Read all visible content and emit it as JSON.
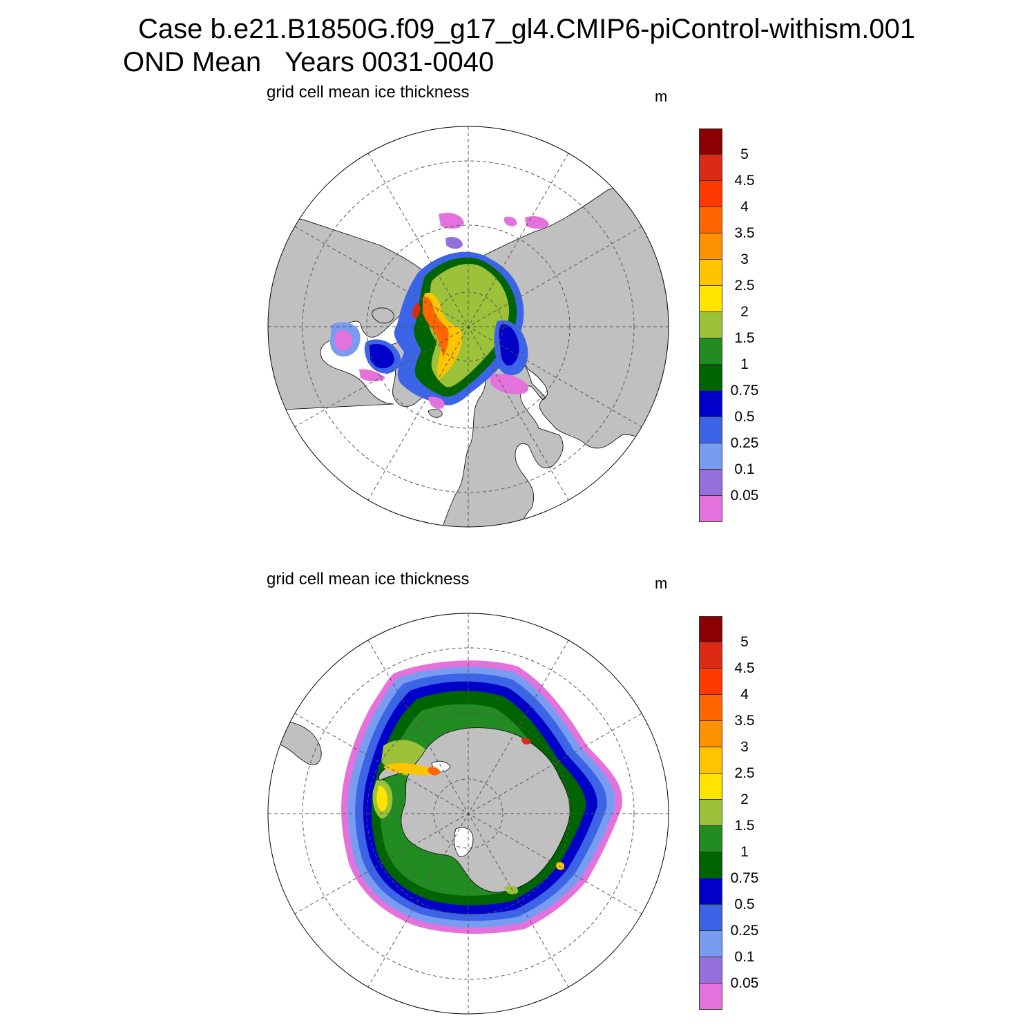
{
  "title_line1": "Case b.e21.B1850G.f09_g17_gl4.CMIP6-piControl-withism.001",
  "title_line2_a": "OND Mean",
  "title_line2_b": "Years 0031-0040",
  "panels": [
    {
      "hemisphere": "north",
      "variable": "grid cell mean ice thickness",
      "units": "m"
    },
    {
      "hemisphere": "south",
      "variable": "grid cell mean ice thickness",
      "units": "m"
    }
  ],
  "colorbar": {
    "colors": [
      "#8b0000",
      "#dc2a14",
      "#ff3a00",
      "#ff6600",
      "#ff9200",
      "#ffc400",
      "#ffe400",
      "#9cc23a",
      "#228b22",
      "#006400",
      "#0000c8",
      "#3c64e6",
      "#789cf0",
      "#9370db",
      "#e472dc"
    ],
    "labels": [
      "5",
      "4.5",
      "4",
      "3.5",
      "3",
      "2.5",
      "2",
      "1.5",
      "1",
      "0.75",
      "0.5",
      "0.25",
      "0.1",
      "0.05"
    ]
  },
  "land_color": "#c0c0c0"
}
